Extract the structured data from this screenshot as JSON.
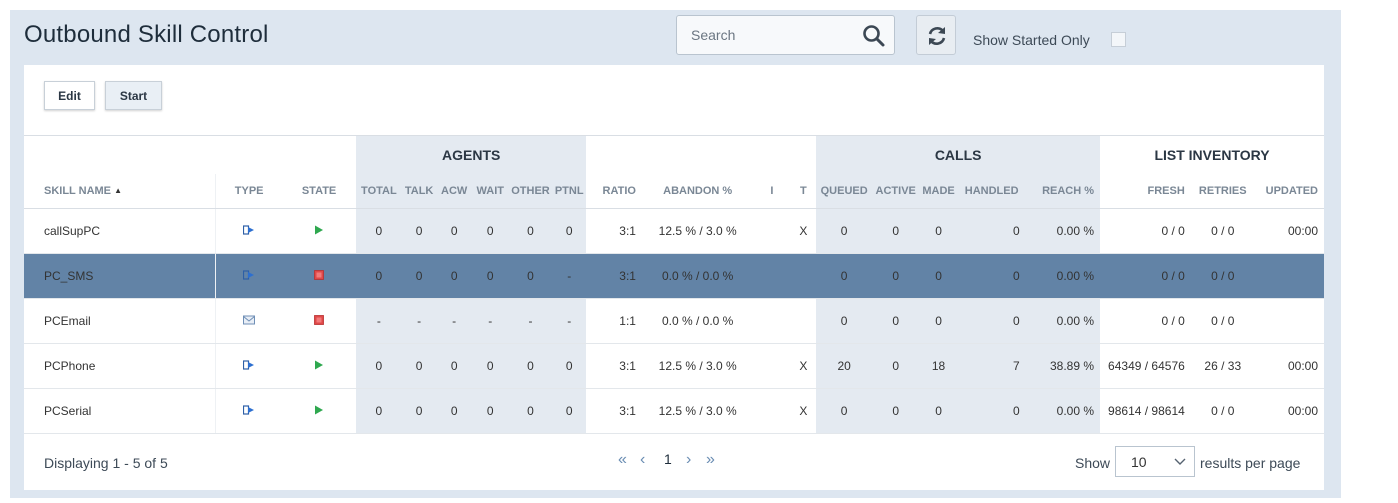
{
  "title": "Outbound Skill Control",
  "search": {
    "placeholder": "Search"
  },
  "filter": {
    "show_started_label": "Show Started Only",
    "checked": false
  },
  "toolbar": {
    "edit_label": "Edit",
    "start_label": "Start"
  },
  "groups": {
    "agents": "AGENTS",
    "calls": "CALLS",
    "list_inventory": "LIST INVENTORY"
  },
  "columns": {
    "skill_name": "SKILL NAME",
    "type": "TYPE",
    "state": "STATE",
    "total": "TOTAL",
    "talk": "TALK",
    "acw": "ACW",
    "wait": "WAIT",
    "other": "OTHER",
    "ptnl": "PTNL",
    "ratio": "RATIO",
    "abandon": "ABANDON %",
    "i": "I",
    "t": "T",
    "queued": "QUEUED",
    "active": "ACTIVE",
    "made": "MADE",
    "handled": "HANDLED",
    "reach": "REACH %",
    "fresh": "FRESH",
    "retries": "RETRIES",
    "updated": "UPDATED"
  },
  "rows": [
    {
      "name": "callSupPC",
      "type_icon": "phone-icon",
      "state_icon": "play-icon",
      "selected": false,
      "total": "0",
      "talk": "0",
      "acw": "0",
      "wait": "0",
      "other": "0",
      "ptnl": "0",
      "ratio": "3:1",
      "abandon": "12.5 % / 3.0 %",
      "i": "",
      "t": "X",
      "queued": "0",
      "active": "0",
      "made": "0",
      "handled": "0",
      "reach": "0.00 %",
      "fresh": "0 / 0",
      "retries": "0 / 0",
      "updated": "00:00"
    },
    {
      "name": "PC_SMS",
      "type_icon": "phone-icon",
      "state_icon": "stop-icon",
      "selected": true,
      "total": "0",
      "talk": "0",
      "acw": "0",
      "wait": "0",
      "other": "0",
      "ptnl": "-",
      "ratio": "3:1",
      "abandon": "0.0 % / 0.0 %",
      "i": "",
      "t": "",
      "queued": "0",
      "active": "0",
      "made": "0",
      "handled": "0",
      "reach": "0.00 %",
      "fresh": "0 / 0",
      "retries": "0 / 0",
      "updated": ""
    },
    {
      "name": "PCEmail",
      "type_icon": "email-icon",
      "state_icon": "stop-icon",
      "selected": false,
      "total": "-",
      "talk": "-",
      "acw": "-",
      "wait": "-",
      "other": "-",
      "ptnl": "-",
      "ratio": "1:1",
      "abandon": "0.0 % / 0.0 %",
      "i": "",
      "t": "",
      "queued": "0",
      "active": "0",
      "made": "0",
      "handled": "0",
      "reach": "0.00 %",
      "fresh": "0 / 0",
      "retries": "0 / 0",
      "updated": ""
    },
    {
      "name": "PCPhone",
      "type_icon": "phone-icon",
      "state_icon": "play-icon",
      "selected": false,
      "total": "0",
      "talk": "0",
      "acw": "0",
      "wait": "0",
      "other": "0",
      "ptnl": "0",
      "ratio": "3:1",
      "abandon": "12.5 % / 3.0 %",
      "i": "",
      "t": "X",
      "queued": "20",
      "active": "0",
      "made": "18",
      "handled": "7",
      "reach": "38.89 %",
      "fresh": "64349 / 64576",
      "retries": "26 / 33",
      "updated": "00:00"
    },
    {
      "name": "PCSerial",
      "type_icon": "phone-icon",
      "state_icon": "play-icon",
      "selected": false,
      "total": "0",
      "talk": "0",
      "acw": "0",
      "wait": "0",
      "other": "0",
      "ptnl": "0",
      "ratio": "3:1",
      "abandon": "12.5 % / 3.0 %",
      "i": "",
      "t": "X",
      "queued": "0",
      "active": "0",
      "made": "0",
      "handled": "0",
      "reach": "0.00 %",
      "fresh": "98614 / 98614",
      "retries": "0 / 0",
      "updated": "00:00"
    }
  ],
  "footer": {
    "displaying": "Displaying 1 - 5 of 5",
    "current_page": "1",
    "show_label": "Show",
    "page_size": "10",
    "results_label": "results per page"
  },
  "colors": {
    "selected_row": "#6283a6",
    "shaded_group": "#e4eaf1",
    "background": "#dde6f0",
    "play": "#2fa84f",
    "stop": "#e04848"
  }
}
